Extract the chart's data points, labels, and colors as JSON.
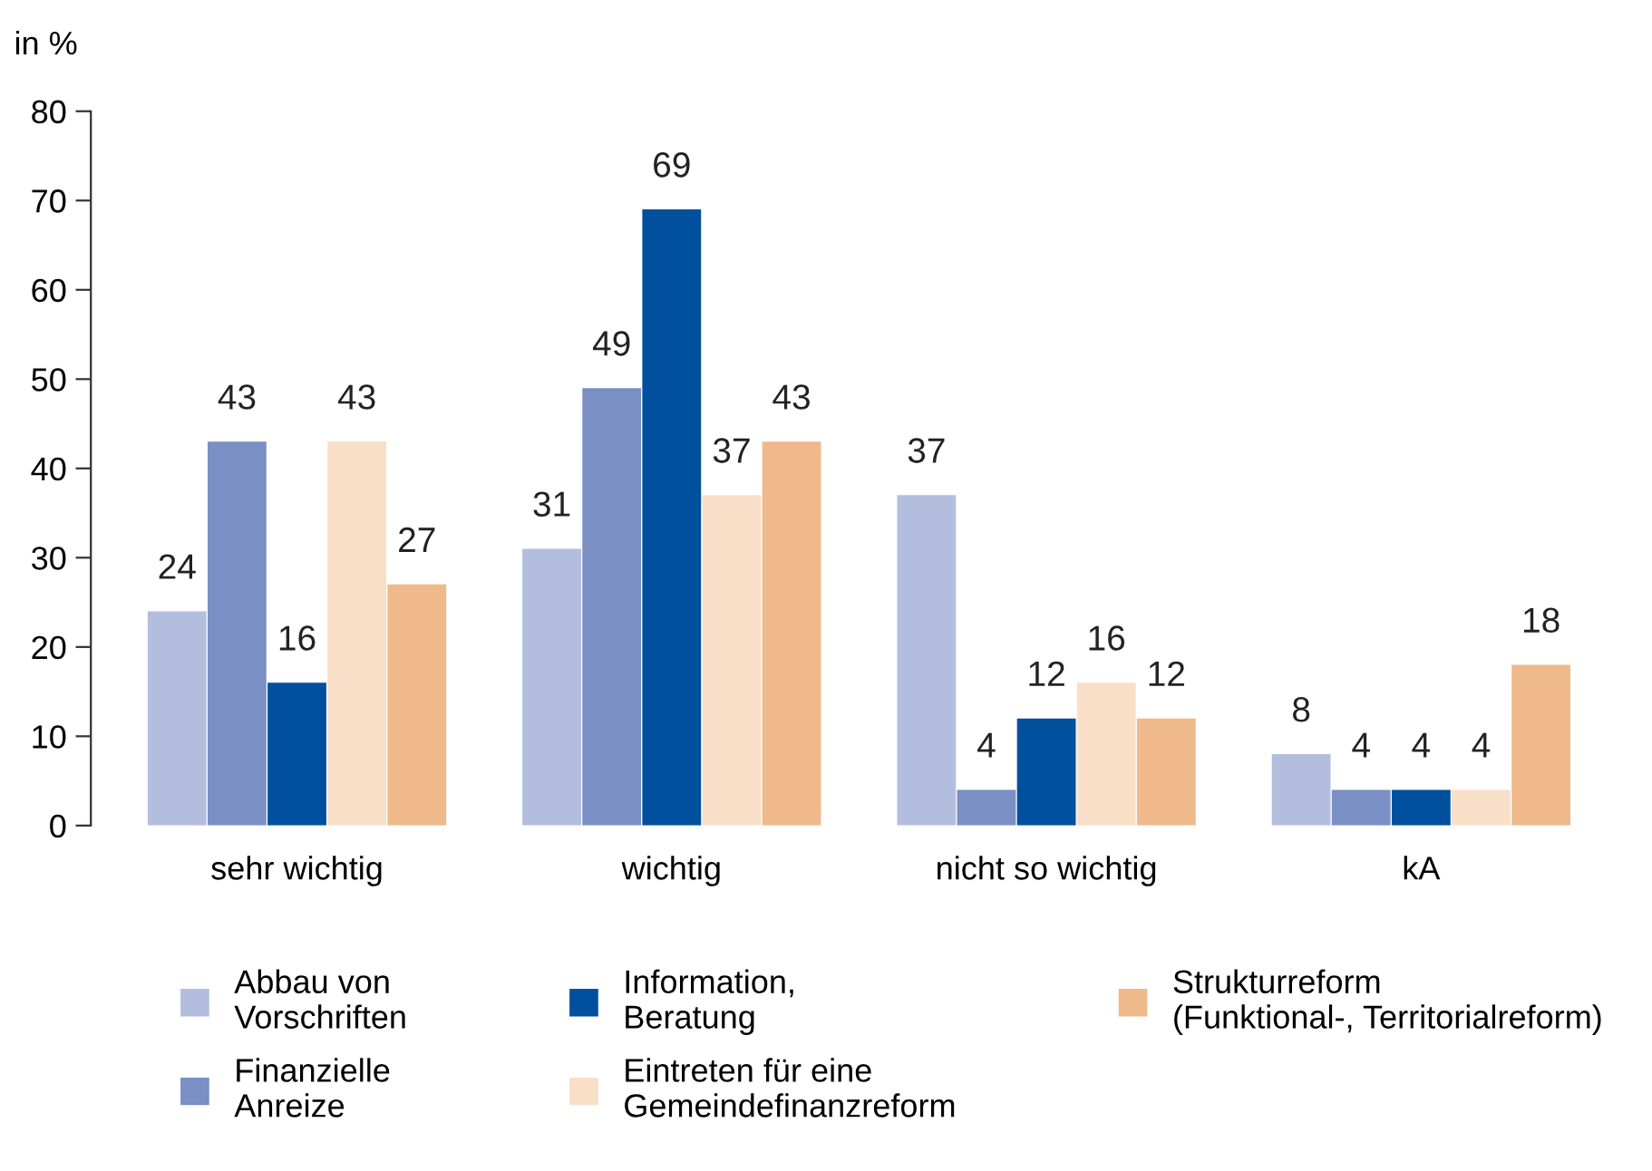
{
  "chart_data": {
    "type": "bar",
    "ylabel": "in %",
    "categories": [
      "sehr wichtig",
      "wichtig",
      "nicht so wichtig",
      "kA"
    ],
    "series": [
      {
        "name": "Abbau von\nVorschriften",
        "color": "#b3bedf",
        "values": [
          24,
          31,
          37,
          8
        ]
      },
      {
        "name": "Finanzielle\nAnreize",
        "color": "#7a8fc3",
        "values": [
          43,
          49,
          4,
          4
        ]
      },
      {
        "name": "Information,\nBeratung",
        "color": "#00509e",
        "values": [
          16,
          69,
          12,
          4
        ]
      },
      {
        "name": "Eintreten für eine\nGemeindefinanzreform",
        "color": "#f9dfc8",
        "values": [
          43,
          37,
          16,
          4
        ]
      },
      {
        "name": "Strukturreform\n(Funktional-, Territorialreform)",
        "color": "#f0b98b",
        "values": [
          27,
          43,
          12,
          18
        ]
      }
    ],
    "ylim": [
      0,
      80
    ],
    "yticks": [
      0,
      10,
      20,
      30,
      40,
      50,
      60,
      70,
      80
    ],
    "data_labels": true,
    "grid": false,
    "legend": "bottom"
  }
}
